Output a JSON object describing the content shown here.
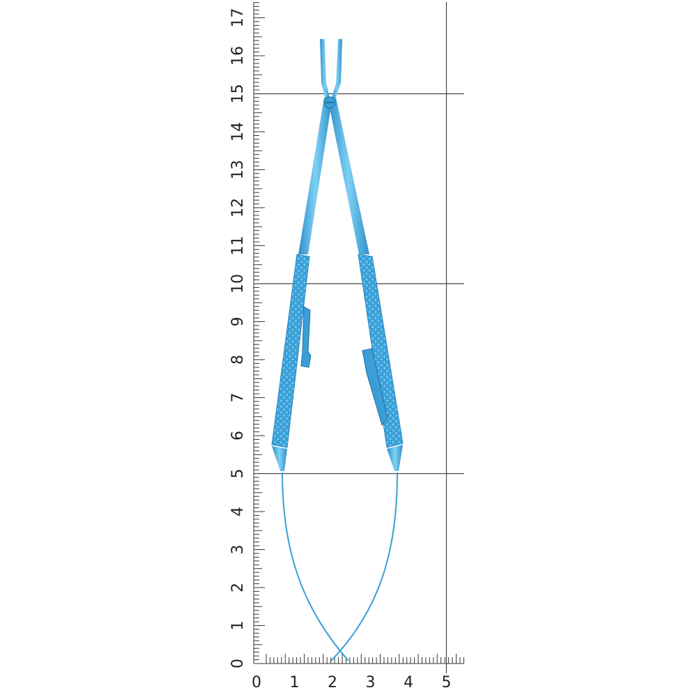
{
  "ruler": {
    "vertical_labels": [
      0,
      1,
      2,
      3,
      4,
      5,
      6,
      7,
      8,
      9,
      10,
      11,
      12,
      13,
      14,
      15,
      16,
      17
    ],
    "horizontal_labels": [
      0,
      1,
      2,
      3,
      4,
      5
    ]
  }
}
